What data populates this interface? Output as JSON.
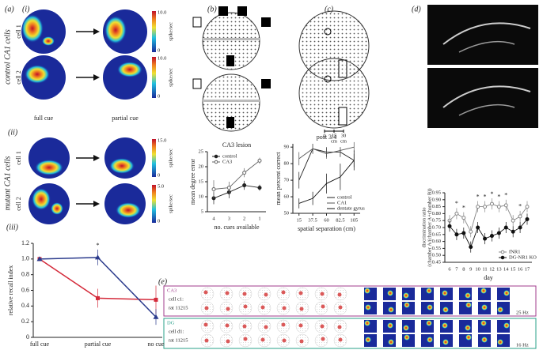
{
  "figure": {
    "a": {
      "label": "(a)",
      "i": "(i)",
      "ii": "(ii)",
      "iii": "(iii)",
      "group_i": "control CA1 cells",
      "group_ii": "mutant CA1 cells",
      "cells_i": [
        "cell 1",
        "cell 2"
      ],
      "cells_ii": [
        "cell 1",
        "cell 2"
      ],
      "columns": [
        "full cue",
        "partial cue"
      ],
      "colorbars_i": [
        {
          "max": "10.0",
          "min": "0",
          "unit": "spike/sec"
        },
        {
          "max": "10.0",
          "min": "0",
          "unit": "spike/sec"
        }
      ],
      "colorbars_ii": [
        {
          "max": "15.0",
          "min": "0",
          "unit": "spike/sec"
        },
        {
          "max": "5.0",
          "min": "0",
          "unit": "spike/sec"
        }
      ]
    },
    "b": {
      "label": "(b)"
    },
    "c": {
      "label": "(c)",
      "scale": [
        "0",
        "15",
        "30"
      ],
      "units": [
        "cm",
        "cm"
      ]
    },
    "d": {
      "label": "(d)"
    },
    "e": {
      "label": "(e)",
      "rows": [
        {
          "region": "CA3",
          "cell": "cell c1:",
          "rat": "rat 11215",
          "rate": "25 Hz"
        },
        {
          "region": "DG",
          "cell": "cell d1:",
          "rat": "rat 11215",
          "rate": "16 Hz"
        }
      ]
    }
  },
  "chart_data": [
    {
      "type": "line",
      "ylabel": "relative recall index",
      "categories": [
        "full cue",
        "partial cue",
        "no cue"
      ],
      "ylim": [
        0,
        1.2
      ],
      "yticks": [
        0,
        0.2,
        0.4,
        0.6,
        0.8,
        {
          "value": 1,
          "label": "1.0"
        },
        1.2
      ],
      "series": [
        {
          "color": "#d42a3a",
          "marker": "square",
          "values": [
            1.0,
            0.5,
            0.48
          ],
          "errors": [
            0,
            0.12,
            0.18
          ]
        },
        {
          "color": "#2a3a8c",
          "marker": "triangle",
          "values": [
            1.0,
            1.02,
            0.26
          ],
          "errors": [
            0,
            0.1,
            0.1
          ]
        }
      ],
      "annotations": [
        {
          "text": "*",
          "x": "partial cue"
        }
      ]
    },
    {
      "type": "line",
      "title": "CA3 lesion",
      "xlabel": "no. cues available",
      "ylabel": "mean degree error",
      "categories": [
        "4",
        "3",
        "2",
        "1"
      ],
      "ylim": [
        5,
        25
      ],
      "yticks": [
        5,
        10,
        15,
        20,
        25
      ],
      "legend": "upper left",
      "series": [
        {
          "name": "control",
          "color": "#222",
          "marker": "filled",
          "values": [
            9.5,
            11.5,
            13.8,
            13
          ],
          "errors": [
            2,
            2,
            1.5,
            1
          ]
        },
        {
          "name": "CA3",
          "color": "#666",
          "marker": "open",
          "values": [
            12.5,
            13,
            18,
            22
          ],
          "errors": [
            3,
            2,
            1.5,
            1
          ]
        }
      ]
    },
    {
      "type": "line",
      "title": "post 3/4",
      "xlabel": "spatial separation (cm)",
      "ylabel": "mean percent correct",
      "x": [
        15,
        37.5,
        60,
        82.5,
        105
      ],
      "xlim": [
        5,
        115
      ],
      "xticks": [
        15,
        37.5,
        60,
        82.5,
        105
      ],
      "ylim": [
        50,
        92
      ],
      "yticks": [
        50,
        60,
        70,
        80,
        90
      ],
      "legend": "lower right",
      "series": [
        {
          "name": "control",
          "color": "#222",
          "marker": "none",
          "values": [
            70,
            89,
            87,
            87,
            82
          ],
          "errors": [
            5,
            3,
            3,
            3,
            4
          ]
        },
        {
          "name": "CA1",
          "color": "#555",
          "marker": "none",
          "values": [
            83,
            89,
            86,
            88,
            90
          ],
          "errors": [
            4,
            3,
            3,
            2,
            3
          ]
        },
        {
          "name": "dentate gyrus",
          "color": "#111",
          "marker": "none",
          "values": [
            56,
            59,
            68,
            72,
            82
          ],
          "errors": [
            3,
            4,
            6,
            8,
            6
          ]
        }
      ]
    },
    {
      "type": "line",
      "xlabel": "day",
      "ylabel": [
        "discrimination ratio",
        "(chamber A/(chamber A+chamber B))"
      ],
      "categories": [
        "6",
        "7",
        "8",
        "9",
        "10",
        "11",
        "12",
        "13",
        "14",
        "15",
        "16",
        "17"
      ],
      "ylim": [
        0.45,
        0.95
      ],
      "yticks": [
        0.45,
        {
          "value": 0.5,
          "label": "0.50"
        },
        0.55,
        {
          "value": 0.6,
          "label": "0.60"
        },
        0.65,
        {
          "value": 0.7,
          "label": "0.70"
        },
        0.75,
        {
          "value": 0.8,
          "label": "0.80"
        },
        0.85,
        {
          "value": 0.9,
          "label": "0.90"
        },
        0.95
      ],
      "legend": "lower right",
      "series": [
        {
          "name": "fNR1",
          "color": "#888",
          "marker": "open",
          "values": [
            0.75,
            0.8,
            0.77,
            0.67,
            0.85,
            0.85,
            0.87,
            0.85,
            0.86,
            0.75,
            0.78,
            0.85
          ],
          "errors": [
            0.04,
            0.04,
            0.04,
            0.04,
            0.04,
            0.04,
            0.04,
            0.04,
            0.04,
            0.04,
            0.04,
            0.04
          ]
        },
        {
          "name": "DG-NR1 KO",
          "color": "#111",
          "marker": "filled",
          "values": [
            0.71,
            0.65,
            0.66,
            0.56,
            0.7,
            0.62,
            0.64,
            0.66,
            0.7,
            0.67,
            0.7,
            0.76
          ],
          "errors": [
            0.04,
            0.04,
            0.04,
            0.04,
            0.04,
            0.04,
            0.04,
            0.04,
            0.04,
            0.04,
            0.04,
            0.04
          ]
        }
      ],
      "annotations": [
        {
          "text": "*",
          "x": "7"
        },
        {
          "text": "*",
          "x": "8"
        },
        {
          "text": "*",
          "x": "10"
        },
        {
          "text": "*",
          "x": "11"
        },
        {
          "text": "*",
          "x": "12"
        },
        {
          "text": "*",
          "x": "13"
        },
        {
          "text": "*",
          "x": "14"
        },
        {
          "text": "*",
          "x": "16"
        }
      ]
    }
  ]
}
